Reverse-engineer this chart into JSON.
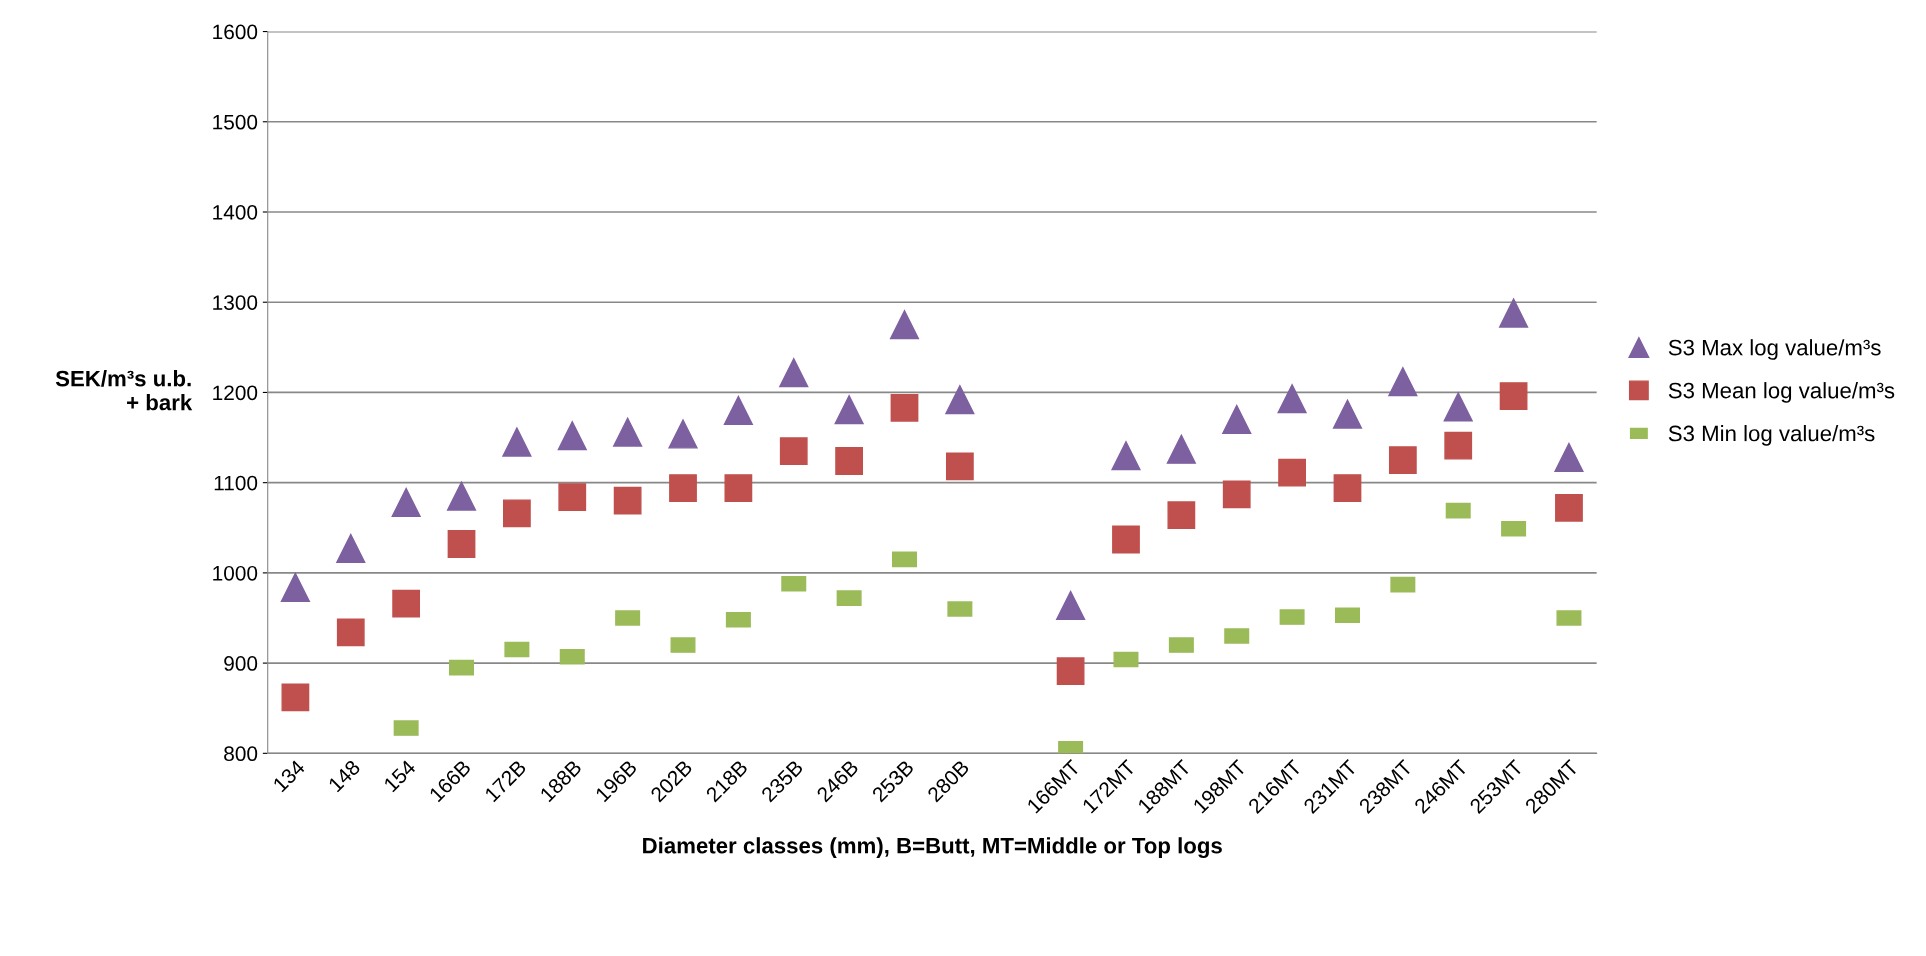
{
  "chart_data": {
    "type": "scatter",
    "xlabel": "Diameter classes (mm), B=Butt, MT=Middle or Top logs",
    "ylabel": "SEK/m³s u.b.\n+ bark",
    "categories": [
      "134",
      "148",
      "154",
      "166B",
      "172B",
      "188B",
      "196B",
      "202B",
      "218B",
      "235B",
      "246B",
      "253B",
      "280B",
      null,
      "166MT",
      "172MT",
      "188MT",
      "198MT",
      "216MT",
      "231MT",
      "238MT",
      "246MT",
      "253MT",
      "280MT"
    ],
    "series": [
      {
        "name": "S3 Max log value/m³s",
        "color": "#7d60a0",
        "marker": "triangle",
        "values": [
          984,
          1027,
          1078,
          1085,
          1145,
          1152,
          1156,
          1154,
          1180,
          1222,
          1181,
          1275,
          1192,
          null,
          964,
          1130,
          1137,
          1170,
          1193,
          1176,
          1212,
          1184,
          1288,
          1128
        ]
      },
      {
        "name": "S3 Mean log value/m³s",
        "color": "#c0504d",
        "marker": "square",
        "values": [
          862,
          934,
          966,
          1032,
          1066,
          1084,
          1080,
          1094,
          1094,
          1135,
          1124,
          1183,
          1118,
          null,
          891,
          1037,
          1064,
          1087,
          1111,
          1094,
          1125,
          1141,
          1196,
          1072
        ]
      },
      {
        "name": "S3 Min log value/m³s",
        "color": "#9bbb59",
        "marker": "square",
        "values": [
          null,
          null,
          828,
          895,
          915,
          907,
          950,
          920,
          948,
          988,
          972,
          1015,
          960,
          null,
          805,
          904,
          920,
          930,
          951,
          953,
          987,
          1069,
          1049,
          950
        ]
      }
    ],
    "ylim": [
      800,
      1600
    ],
    "yticks": [
      800,
      900,
      1000,
      1100,
      1200,
      1300,
      1400,
      1500,
      1600
    ],
    "grid": "y",
    "legend": "right"
  }
}
